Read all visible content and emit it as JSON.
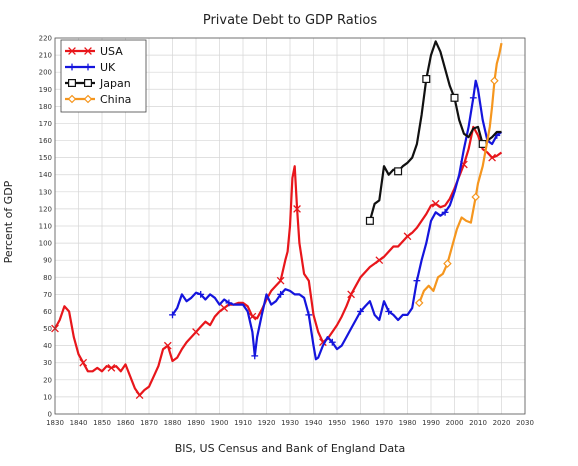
{
  "chart_data": {
    "type": "line",
    "title": "Private Debt to GDP Ratios",
    "xlabel": "BIS, US Census and Bank of England Data",
    "ylabel": "Percent of GDP",
    "xlim": [
      1830,
      2030
    ],
    "ylim": [
      0,
      220
    ],
    "x_ticks": [
      1830,
      1840,
      1850,
      1860,
      1870,
      1880,
      1890,
      1900,
      1910,
      1920,
      1930,
      1940,
      1950,
      1960,
      1970,
      1980,
      1990,
      2000,
      2010,
      2020,
      2030
    ],
    "y_ticks": [
      0,
      10,
      20,
      30,
      40,
      50,
      60,
      70,
      80,
      90,
      100,
      110,
      120,
      130,
      140,
      150,
      160,
      170,
      180,
      190,
      200,
      210,
      220
    ],
    "grid": true,
    "legend_position": "top-left",
    "series": [
      {
        "name": "USA",
        "color": "#e8161b",
        "marker": "x",
        "x": [
          1830,
          1832,
          1834,
          1836,
          1838,
          1840,
          1842,
          1844,
          1846,
          1848,
          1850,
          1852,
          1854,
          1856,
          1858,
          1860,
          1862,
          1864,
          1866,
          1868,
          1870,
          1872,
          1874,
          1876,
          1878,
          1880,
          1882,
          1884,
          1886,
          1888,
          1890,
          1892,
          1894,
          1896,
          1898,
          1900,
          1902,
          1904,
          1906,
          1908,
          1910,
          1912,
          1914,
          1916,
          1918,
          1920,
          1922,
          1924,
          1926,
          1928,
          1929,
          1930,
          1931,
          1932,
          1933,
          1934,
          1936,
          1938,
          1940,
          1942,
          1944,
          1946,
          1948,
          1950,
          1952,
          1954,
          1956,
          1958,
          1960,
          1962,
          1964,
          1966,
          1968,
          1970,
          1972,
          1974,
          1976,
          1978,
          1980,
          1982,
          1984,
          1986,
          1988,
          1990,
          1992,
          1994,
          1996,
          1998,
          2000,
          2002,
          2004,
          2006,
          2008,
          2010,
          2012,
          2014,
          2016,
          2018,
          2020
        ],
        "y": [
          50,
          55,
          63,
          60,
          45,
          35,
          30,
          25,
          25,
          27,
          25,
          28,
          27,
          28,
          25,
          29,
          22,
          15,
          11,
          14,
          16,
          22,
          28,
          38,
          40,
          31,
          33,
          38,
          42,
          45,
          48,
          51,
          54,
          52,
          57,
          60,
          62,
          64,
          64,
          65,
          65,
          63,
          57,
          56,
          61,
          67,
          72,
          75,
          78,
          90,
          95,
          110,
          138,
          145,
          120,
          100,
          82,
          78,
          58,
          48,
          42,
          44,
          48,
          52,
          57,
          63,
          70,
          75,
          80,
          83,
          86,
          88,
          90,
          92,
          95,
          98,
          98,
          101,
          104,
          106,
          109,
          113,
          117,
          122,
          123,
          121,
          122,
          126,
          132,
          139,
          146,
          155,
          168,
          163,
          155,
          153,
          150,
          151,
          153
        ]
      },
      {
        "name": "UK",
        "color": "#1515dd",
        "marker": "+",
        "x": [
          1880,
          1882,
          1884,
          1886,
          1888,
          1890,
          1892,
          1894,
          1896,
          1898,
          1900,
          1902,
          1904,
          1906,
          1908,
          1910,
          1912,
          1914,
          1915,
          1916,
          1918,
          1920,
          1922,
          1924,
          1926,
          1928,
          1930,
          1932,
          1934,
          1936,
          1938,
          1940,
          1941,
          1942,
          1944,
          1946,
          1948,
          1950,
          1952,
          1954,
          1956,
          1958,
          1960,
          1962,
          1964,
          1966,
          1968,
          1970,
          1972,
          1974,
          1976,
          1978,
          1980,
          1982,
          1984,
          1986,
          1988,
          1990,
          1992,
          1994,
          1996,
          1998,
          2000,
          2002,
          2004,
          2006,
          2008,
          2009,
          2010,
          2012,
          2014,
          2016,
          2018,
          2020
        ],
        "y": [
          58,
          62,
          70,
          66,
          68,
          71,
          70,
          67,
          70,
          68,
          64,
          67,
          65,
          64,
          64,
          64,
          60,
          48,
          34,
          45,
          58,
          70,
          64,
          66,
          70,
          73,
          72,
          70,
          70,
          68,
          58,
          40,
          32,
          33,
          40,
          45,
          42,
          38,
          40,
          45,
          50,
          55,
          60,
          63,
          66,
          58,
          55,
          66,
          60,
          58,
          55,
          58,
          58,
          62,
          78,
          90,
          100,
          113,
          118,
          116,
          118,
          122,
          130,
          140,
          155,
          168,
          185,
          195,
          190,
          172,
          160,
          158,
          163,
          165
        ]
      },
      {
        "name": "Japan",
        "color": "#111111",
        "marker": "square",
        "x": [
          1964,
          1966,
          1968,
          1970,
          1972,
          1974,
          1976,
          1978,
          1980,
          1982,
          1984,
          1986,
          1988,
          1990,
          1992,
          1994,
          1996,
          1998,
          2000,
          2002,
          2004,
          2006,
          2008,
          2010,
          2012,
          2014,
          2016,
          2018,
          2020
        ],
        "y": [
          113,
          123,
          125,
          145,
          140,
          143,
          142,
          145,
          147,
          150,
          158,
          175,
          196,
          210,
          218,
          212,
          202,
          192,
          185,
          172,
          164,
          162,
          167,
          168,
          158,
          160,
          162,
          165,
          165
        ]
      },
      {
        "name": "China",
        "color": "#f5961e",
        "marker": "diamond",
        "x": [
          1985,
          1987,
          1989,
          1991,
          1993,
          1995,
          1997,
          1999,
          2001,
          2003,
          2005,
          2007,
          2009,
          2010,
          2012,
          2014,
          2015,
          2016,
          2017,
          2018,
          2019,
          2020
        ],
        "y": [
          65,
          72,
          75,
          72,
          80,
          82,
          88,
          98,
          108,
          115,
          113,
          112,
          127,
          135,
          145,
          160,
          168,
          180,
          195,
          205,
          210,
          217
        ]
      }
    ]
  }
}
